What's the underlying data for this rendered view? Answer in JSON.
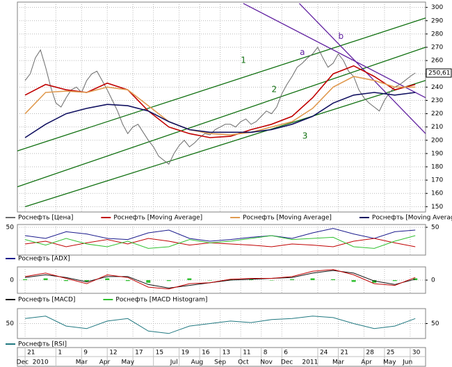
{
  "chart_data": [
    {
      "type": "line",
      "name": "price",
      "xlim": [
        -1.5,
        78
      ],
      "ylim": [
        146,
        304
      ],
      "yticks": [
        150,
        160,
        170,
        180,
        190,
        200,
        210,
        220,
        230,
        240,
        250,
        260,
        270,
        280,
        290,
        300
      ],
      "grid": true,
      "xticks": [
        {
          "value": 0,
          "label": "21"
        },
        {
          "value": 6,
          "label": "1"
        },
        {
          "value": 11,
          "label": "9"
        },
        {
          "value": 16,
          "label": "12"
        },
        {
          "value": 21,
          "label": "17"
        },
        {
          "value": 25,
          "label": "15"
        },
        {
          "value": 30,
          "label": "19"
        },
        {
          "value": 34,
          "label": "16"
        },
        {
          "value": 38,
          "label": "13"
        },
        {
          "value": 42,
          "label": "11"
        },
        {
          "value": 46,
          "label": "8"
        },
        {
          "value": 50,
          "label": "6"
        },
        {
          "value": 57,
          "label": "24"
        },
        {
          "value": 61,
          "label": "21"
        },
        {
          "value": 66,
          "label": "28"
        },
        {
          "value": 70,
          "label": "25"
        },
        {
          "value": 75,
          "label": "30"
        }
      ],
      "month_ticks": [
        {
          "value": -0.5,
          "label": "Dec"
        },
        {
          "value": 3,
          "label": "2010"
        },
        {
          "value": 11,
          "label": "Mar"
        },
        {
          "value": 15.5,
          "label": "Apr"
        },
        {
          "value": 20,
          "label": "May"
        },
        {
          "value": 29,
          "label": "Jul"
        },
        {
          "value": 33.5,
          "label": "Aug"
        },
        {
          "value": 38,
          "label": "Sep"
        },
        {
          "value": 42.5,
          "label": "Oct"
        },
        {
          "value": 47,
          "label": "Nov"
        },
        {
          "value": 51,
          "label": "Dec"
        },
        {
          "value": 55.5,
          "label": "2011"
        },
        {
          "value": 61,
          "label": "Mar"
        },
        {
          "value": 66.5,
          "label": "Apr"
        },
        {
          "value": 71,
          "label": "May"
        },
        {
          "value": 74.5,
          "label": "Jun"
        }
      ],
      "last_value_label": "250,61",
      "series": [
        {
          "name": "Роснефть [Цена]",
          "color": "#6b6b6b",
          "x": [
            0,
            1,
            2,
            3,
            4,
            5,
            6,
            7,
            8,
            9,
            10,
            11,
            12,
            13,
            14,
            15,
            16,
            17,
            18,
            19,
            20,
            21,
            22,
            23,
            24,
            25,
            26,
            27,
            28,
            29,
            30,
            31,
            32,
            33,
            34,
            35,
            36,
            37,
            38,
            39,
            40,
            41,
            42,
            43,
            44,
            45,
            46,
            47,
            48,
            49,
            50,
            51,
            52,
            53,
            54,
            55,
            56,
            57,
            58,
            59,
            60,
            61,
            62,
            63,
            64,
            65,
            66,
            67,
            68,
            69,
            70,
            71,
            72,
            73,
            74,
            75,
            76
          ],
          "values": [
            245,
            250,
            262,
            268,
            255,
            240,
            228,
            225,
            232,
            238,
            240,
            236,
            245,
            250,
            252,
            245,
            238,
            230,
            222,
            212,
            205,
            210,
            212,
            206,
            200,
            195,
            188,
            185,
            182,
            190,
            196,
            200,
            195,
            198,
            202,
            205,
            204,
            208,
            210,
            212,
            212,
            210,
            214,
            216,
            212,
            214,
            218,
            222,
            220,
            225,
            235,
            242,
            248,
            255,
            258,
            262,
            265,
            270,
            262,
            255,
            258,
            265,
            260,
            252,
            248,
            238,
            232,
            228,
            225,
            222,
            230,
            236,
            240,
            242,
            245,
            248,
            250.61
          ]
        },
        {
          "name": "Роснефть [Moving Average]",
          "color": "#c00000",
          "x": [
            0,
            4,
            8,
            12,
            16,
            20,
            24,
            28,
            32,
            36,
            40,
            44,
            48,
            52,
            56,
            60,
            64,
            68,
            72,
            76
          ],
          "values": [
            234,
            242,
            238,
            236,
            243,
            238,
            222,
            210,
            205,
            202,
            203,
            208,
            212,
            218,
            232,
            250,
            256,
            248,
            238,
            242
          ]
        },
        {
          "name": "Роснефть [Moving Average]",
          "color": "#e09a50",
          "x": [
            0,
            4,
            8,
            12,
            16,
            20,
            24,
            28,
            32,
            36,
            40,
            44,
            48,
            52,
            56,
            60,
            64,
            68,
            72,
            76
          ],
          "values": [
            220,
            236,
            237,
            236,
            240,
            238,
            226,
            214,
            208,
            205,
            204,
            206,
            210,
            214,
            224,
            240,
            248,
            245,
            240,
            240
          ]
        },
        {
          "name": "Роснефть [Moving Average]",
          "color": "#101060",
          "x": [
            0,
            4,
            8,
            12,
            16,
            20,
            24,
            28,
            32,
            36,
            40,
            44,
            48,
            52,
            56,
            60,
            64,
            68,
            72,
            76
          ],
          "values": [
            202,
            212,
            220,
            224,
            227,
            226,
            222,
            214,
            208,
            206,
            206,
            206,
            208,
            212,
            218,
            228,
            234,
            236,
            234,
            236
          ]
        }
      ],
      "lines": [
        {
          "label": "1",
          "color": "#107010",
          "x": [
            -1.5,
            78
          ],
          "values": [
            192,
            292
          ],
          "label_at": [
            42,
            260
          ]
        },
        {
          "label": "2",
          "color": "#107010",
          "x": [
            -1.5,
            78
          ],
          "values": [
            165,
            270
          ],
          "label_at": [
            48,
            238
          ]
        },
        {
          "label": "3",
          "color": "#107010",
          "x": [
            0,
            78
          ],
          "values": [
            150,
            245
          ],
          "label_at": [
            54,
            203
          ]
        },
        {
          "label": "a",
          "color": "#6020a0",
          "x": [
            42.5,
            78
          ],
          "values": [
            303,
            232
          ],
          "label_at": [
            53.5,
            266
          ]
        },
        {
          "label": "b",
          "color": "#6020a0",
          "x": [
            53.4,
            78
          ],
          "values": [
            303,
            205
          ],
          "label_at": [
            61,
            278
          ]
        }
      ]
    },
    {
      "type": "line",
      "name": "adx",
      "ylim": [
        0,
        55
      ],
      "yticks": [
        50
      ],
      "series": [
        {
          "name": "Роснефть [ADX]",
          "color": "#1a1a8c",
          "x": [
            0,
            4,
            8,
            12,
            16,
            20,
            24,
            28,
            32,
            36,
            40,
            44,
            48,
            52,
            56,
            60,
            64,
            68,
            72,
            76
          ],
          "values": [
            35,
            30,
            42,
            38,
            30,
            28,
            40,
            45,
            30,
            25,
            28,
            32,
            35,
            30,
            40,
            48,
            38,
            30,
            42,
            45
          ]
        },
        {
          "color": "#c00000",
          "x": [
            0,
            4,
            8,
            12,
            16,
            20,
            24,
            28,
            32,
            36,
            40,
            44,
            48,
            52,
            56,
            60,
            64,
            68,
            72,
            76
          ],
          "values": [
            20,
            25,
            15,
            22,
            28,
            20,
            30,
            25,
            18,
            22,
            20,
            18,
            15,
            20,
            18,
            15,
            25,
            30,
            22,
            15
          ]
        },
        {
          "color": "#30c030",
          "x": [
            0,
            4,
            8,
            12,
            16,
            20,
            24,
            28,
            32,
            36,
            40,
            44,
            48,
            52,
            56,
            60,
            64,
            68,
            72,
            76
          ],
          "values": [
            28,
            18,
            30,
            20,
            15,
            25,
            12,
            15,
            28,
            22,
            25,
            30,
            35,
            28,
            30,
            32,
            15,
            12,
            25,
            35
          ]
        }
      ]
    },
    {
      "type": "line",
      "name": "macd",
      "ylim": [
        -15,
        15
      ],
      "yticks": [
        0
      ],
      "histogram": {
        "name": "Роснефть [MACD Histogram]",
        "color": "#30c030",
        "x": [
          0,
          4,
          8,
          12,
          16,
          20,
          24,
          28,
          32,
          36,
          40,
          44,
          48,
          52,
          56,
          60,
          64,
          68,
          72,
          76
        ],
        "values": [
          1,
          2,
          -1,
          -2,
          2,
          -1,
          -3,
          -1,
          2,
          0,
          1,
          1,
          0,
          1,
          2,
          1,
          -2,
          -3,
          -1,
          2
        ]
      },
      "series": [
        {
          "name": "Роснефть [MACD]",
          "color": "#101010",
          "x": [
            0,
            4,
            8,
            12,
            16,
            20,
            24,
            28,
            32,
            36,
            40,
            44,
            48,
            52,
            56,
            60,
            64,
            68,
            72,
            76
          ],
          "values": [
            3,
            6,
            3,
            -2,
            4,
            4,
            -5,
            -9,
            -6,
            -3,
            0,
            1,
            2,
            3,
            8,
            11,
            8,
            -1,
            -5,
            1
          ]
        },
        {
          "color": "#c00000",
          "x": [
            0,
            4,
            8,
            12,
            16,
            20,
            24,
            28,
            32,
            36,
            40,
            44,
            48,
            52,
            56,
            60,
            64,
            68,
            72,
            76
          ],
          "values": [
            4,
            8,
            2,
            -4,
            6,
            3,
            -8,
            -10,
            -4,
            -3,
            1,
            2,
            2,
            4,
            10,
            12,
            6,
            -4,
            -6,
            3
          ]
        }
      ]
    },
    {
      "type": "line",
      "name": "rsi",
      "ylim": [
        20,
        80
      ],
      "yticks": [
        50
      ],
      "series": [
        {
          "name": "Роснефть [RSI]",
          "color": "#207880",
          "x": [
            0,
            4,
            8,
            12,
            16,
            20,
            24,
            28,
            32,
            36,
            40,
            44,
            48,
            52,
            56,
            60,
            64,
            68,
            72,
            76
          ],
          "values": [
            60,
            65,
            45,
            40,
            55,
            60,
            35,
            30,
            45,
            50,
            55,
            52,
            58,
            60,
            65,
            62,
            50,
            40,
            45,
            60
          ]
        }
      ]
    }
  ]
}
